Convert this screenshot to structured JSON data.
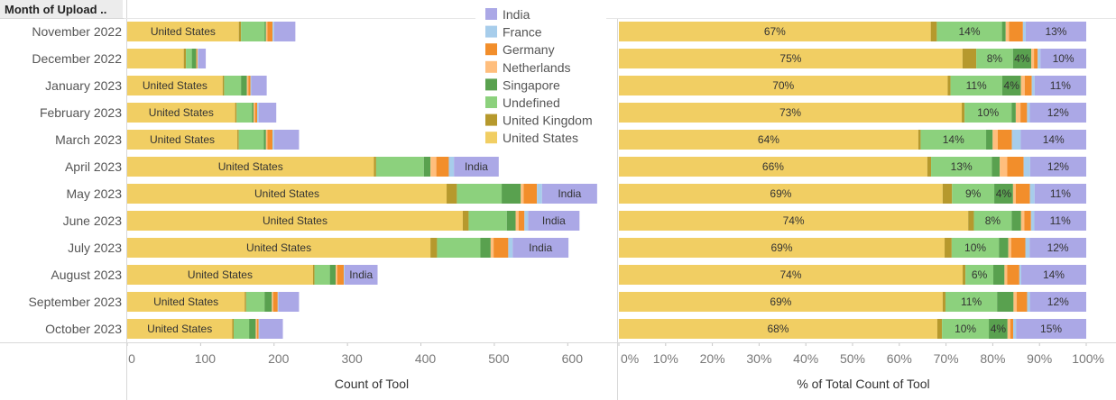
{
  "header": {
    "row_label": "Month of Upload .."
  },
  "legend": [
    {
      "name": "India",
      "color": "#ABA8E6"
    },
    {
      "name": "France",
      "color": "#A7CDEB"
    },
    {
      "name": "Germany",
      "color": "#F28E2B"
    },
    {
      "name": "Netherlands",
      "color": "#FFBE7D"
    },
    {
      "name": "Singapore",
      "color": "#59A14F"
    },
    {
      "name": "Undefined",
      "color": "#8CD17D"
    },
    {
      "name": "United Kingdom",
      "color": "#B6992D"
    },
    {
      "name": "United States",
      "color": "#F1CE63"
    }
  ],
  "chart_data": [
    {
      "type": "bar",
      "orientation": "horizontal",
      "stacked": true,
      "xlabel": "Count of Tool",
      "xlim": [
        0,
        650
      ],
      "xticks": [
        0,
        100,
        200,
        300,
        400,
        500,
        600
      ],
      "categories": [
        "November 2022",
        "December 2022",
        "January 2023",
        "February 2023",
        "March 2023",
        "April 2023",
        "May 2023",
        "June 2023",
        "July 2023",
        "August 2023",
        "September 2023",
        "October 2023"
      ],
      "series": [
        {
          "name": "United States",
          "values": [
            152,
            77,
            130,
            147,
            150,
            336,
            435,
            457,
            413,
            253,
            160,
            143
          ]
        },
        {
          "name": "United Kingdom",
          "values": [
            3,
            3,
            2,
            2,
            2,
            3,
            14,
            8,
            9,
            2,
            2,
            2
          ]
        },
        {
          "name": "Undefined",
          "values": [
            32,
            8,
            23,
            21,
            34,
            65,
            61,
            52,
            59,
            21,
            25,
            21
          ]
        },
        {
          "name": "Singapore",
          "values": [
            2,
            6,
            8,
            2,
            3,
            9,
            26,
            12,
            14,
            8,
            10,
            9
          ]
        },
        {
          "name": "Netherlands",
          "values": [
            2,
            1,
            2,
            2,
            2,
            8,
            4,
            4,
            4,
            2,
            2,
            2
          ]
        },
        {
          "name": "Germany",
          "values": [
            7,
            1,
            3,
            3,
            7,
            17,
            18,
            8,
            20,
            9,
            6,
            2
          ]
        },
        {
          "name": "France",
          "values": [
            2,
            1,
            1,
            2,
            2,
            7,
            7,
            5,
            6,
            1,
            1,
            1
          ]
        },
        {
          "name": "India",
          "values": [
            29,
            10,
            21,
            24,
            34,
            61,
            75,
            70,
            76,
            45,
            28,
            32
          ]
        }
      ],
      "bar_labels": {
        "United States": [
          "United States",
          "",
          "United States",
          "United States",
          "United States",
          "United States",
          "United States",
          "United States",
          "United States",
          "United States",
          "United States",
          "United States"
        ],
        "India": [
          "",
          "",
          "",
          "",
          "",
          "India",
          "India",
          "India",
          "India",
          "India",
          "",
          ""
        ]
      }
    },
    {
      "type": "bar",
      "orientation": "horizontal",
      "stacked": true,
      "xlabel": "% of Total Count of Tool",
      "xlim": [
        0,
        100
      ],
      "xticks": [
        "0%",
        "10%",
        "20%",
        "30%",
        "40%",
        "50%",
        "60%",
        "70%",
        "80%",
        "90%",
        "100%"
      ],
      "categories": [
        "November 2022",
        "December 2022",
        "January 2023",
        "February 2023",
        "March 2023",
        "April 2023",
        "May 2023",
        "June 2023",
        "July 2023",
        "August 2023",
        "September 2023",
        "October 2023"
      ],
      "series": [
        {
          "name": "United States",
          "values": [
            67,
            75,
            70,
            73,
            64,
            66,
            69,
            74,
            69,
            74,
            69,
            68
          ]
        },
        {
          "name": "United Kingdom",
          "values": [
            1.3,
            3,
            0.6,
            0.6,
            0.5,
            0.8,
            2,
            1.2,
            1.5,
            0.6,
            0.6,
            1
          ]
        },
        {
          "name": "Undefined",
          "values": [
            14,
            8,
            11,
            10,
            14,
            13,
            9,
            8,
            10,
            6,
            11,
            10
          ]
        },
        {
          "name": "Singapore",
          "values": [
            0.8,
            4,
            4,
            0.9,
            1.4,
            1.7,
            4,
            2,
            2,
            2.4,
            3.5,
            4
          ]
        },
        {
          "name": "Netherlands",
          "values": [
            0.7,
            0.6,
            0.8,
            1,
            1.1,
            1.6,
            0.6,
            0.7,
            0.6,
            0.6,
            0.7,
            0.6
          ]
        },
        {
          "name": "Germany",
          "values": [
            3,
            0.8,
            1.5,
            1.4,
            3,
            3.5,
            3,
            1.4,
            3,
            2.6,
            2.2,
            0.6
          ]
        },
        {
          "name": "France",
          "values": [
            0.6,
            0.6,
            0.6,
            0.6,
            1.9,
            1.4,
            1,
            0.7,
            0.9,
            0.4,
            0.6,
            0.6
          ]
        },
        {
          "name": "India",
          "values": [
            13,
            10,
            11,
            12,
            14,
            12,
            11,
            11,
            12,
            14,
            12,
            15
          ]
        }
      ],
      "bar_labels": {
        "United States": [
          "67%",
          "75%",
          "70%",
          "73%",
          "64%",
          "66%",
          "69%",
          "74%",
          "69%",
          "74%",
          "69%",
          "68%"
        ],
        "Undefined": [
          "14%",
          "8%",
          "11%",
          "10%",
          "14%",
          "13%",
          "9%",
          "8%",
          "10%",
          "6%",
          "11%",
          "10%"
        ],
        "Singapore": [
          "",
          "4%",
          "4%",
          "",
          "",
          "",
          "4%",
          "",
          "",
          "",
          "",
          "4%"
        ],
        "India": [
          "13%",
          "10%",
          "11%",
          "12%",
          "14%",
          "12%",
          "11%",
          "11%",
          "12%",
          "14%",
          "12%",
          "15%"
        ]
      }
    }
  ]
}
